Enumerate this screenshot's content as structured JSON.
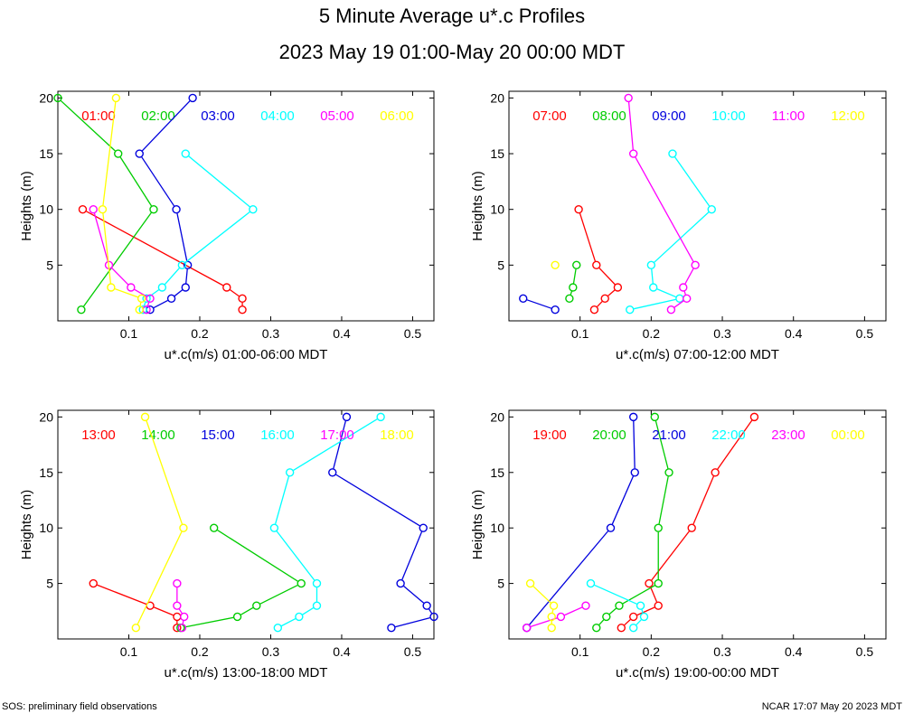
{
  "title": "5 Minute Average u*.c Profiles",
  "subtitle": "2023 May 19 01:00-May 20 00:00 MDT",
  "footer_left": "SOS: preliminary field observations",
  "footer_right": "NCAR 17:07 May 20 2023 MDT",
  "chart_data": [
    {
      "type": "line",
      "xlabel": "u*.c(m/s) 01:00-06:00 MDT",
      "ylabel": "Heights (m)",
      "xlim": [
        0.0,
        0.53
      ],
      "ylim": [
        0.0,
        20.6
      ],
      "xticks": [
        "0.1",
        "0.2",
        "0.3",
        "0.4",
        "0.5"
      ],
      "yticks": [
        "5",
        "10",
        "15",
        "20"
      ],
      "series": [
        {
          "name": "01:00",
          "color": "#ff0000",
          "points": [
            [
              0.035,
              10
            ],
            [
              0.238,
              3
            ],
            [
              0.26,
              2
            ],
            [
              0.26,
              1
            ]
          ]
        },
        {
          "name": "02:00",
          "color": "#00cc00",
          "points": [
            [
              0.0,
              20
            ],
            [
              0.085,
              15
            ],
            [
              0.135,
              10
            ],
            [
              0.033,
              1
            ]
          ]
        },
        {
          "name": "03:00",
          "color": "#0000dd",
          "points": [
            [
              0.19,
              20
            ],
            [
              0.115,
              15
            ],
            [
              0.167,
              10
            ],
            [
              0.183,
              5
            ],
            [
              0.18,
              3
            ],
            [
              0.16,
              2
            ],
            [
              0.13,
              1
            ]
          ]
        },
        {
          "name": "04:00",
          "color": "#00ffff",
          "points": [
            [
              0.18,
              15
            ],
            [
              0.275,
              10
            ],
            [
              0.175,
              5
            ],
            [
              0.147,
              3
            ],
            [
              0.125,
              2
            ],
            [
              0.12,
              1
            ]
          ]
        },
        {
          "name": "05:00",
          "color": "#ff00ff",
          "points": [
            [
              0.05,
              10
            ],
            [
              0.072,
              5
            ],
            [
              0.103,
              3
            ],
            [
              0.13,
              2
            ],
            [
              0.125,
              1
            ]
          ]
        },
        {
          "name": "06:00",
          "color": "#ffff00",
          "points": [
            [
              0.082,
              20
            ],
            [
              0.063,
              10
            ],
            [
              0.075,
              3
            ],
            [
              0.118,
              2
            ],
            [
              0.115,
              1
            ]
          ]
        }
      ]
    },
    {
      "type": "line",
      "xlabel": "u*.c(m/s) 07:00-12:00 MDT",
      "ylabel": "Heights (m)",
      "xlim": [
        0.0,
        0.53
      ],
      "ylim": [
        0.0,
        20.6
      ],
      "xticks": [
        "0.1",
        "0.2",
        "0.3",
        "0.4",
        "0.5"
      ],
      "yticks": [
        "5",
        "10",
        "15",
        "20"
      ],
      "series": [
        {
          "name": "07:00",
          "color": "#ff0000",
          "points": [
            [
              0.098,
              10
            ],
            [
              0.123,
              5
            ],
            [
              0.153,
              3
            ],
            [
              0.135,
              2
            ],
            [
              0.12,
              1
            ]
          ]
        },
        {
          "name": "08:00",
          "color": "#00cc00",
          "points": [
            [
              0.095,
              5
            ],
            [
              0.09,
              3
            ],
            [
              0.085,
              2
            ]
          ]
        },
        {
          "name": "09:00",
          "color": "#0000dd",
          "points": [
            [
              0.02,
              2
            ],
            [
              0.065,
              1
            ]
          ]
        },
        {
          "name": "10:00",
          "color": "#00ffff",
          "points": [
            [
              0.23,
              15
            ],
            [
              0.285,
              10
            ],
            [
              0.2,
              5
            ],
            [
              0.203,
              3
            ],
            [
              0.24,
              2
            ],
            [
              0.17,
              1
            ]
          ]
        },
        {
          "name": "11:00",
          "color": "#ff00ff",
          "points": [
            [
              0.168,
              20
            ],
            [
              0.175,
              15
            ],
            [
              0.262,
              5
            ],
            [
              0.245,
              3
            ],
            [
              0.25,
              2
            ],
            [
              0.228,
              1
            ]
          ]
        },
        {
          "name": "12:00",
          "color": "#ffff00",
          "points": [
            [
              0.065,
              5
            ]
          ]
        }
      ]
    },
    {
      "type": "line",
      "xlabel": "u*.c(m/s) 13:00-18:00 MDT",
      "ylabel": "Heights (m)",
      "xlim": [
        0.0,
        0.53
      ],
      "ylim": [
        0.0,
        20.6
      ],
      "xticks": [
        "0.1",
        "0.2",
        "0.3",
        "0.4",
        "0.5"
      ],
      "yticks": [
        "5",
        "10",
        "15",
        "20"
      ],
      "series": [
        {
          "name": "13:00",
          "color": "#ff0000",
          "points": [
            [
              0.05,
              5
            ],
            [
              0.13,
              3
            ],
            [
              0.168,
              2
            ],
            [
              0.168,
              1
            ]
          ]
        },
        {
          "name": "14:00",
          "color": "#00cc00",
          "points": [
            [
              0.22,
              10
            ],
            [
              0.343,
              5
            ],
            [
              0.28,
              3
            ],
            [
              0.253,
              2
            ],
            [
              0.173,
              1
            ]
          ]
        },
        {
          "name": "15:00",
          "color": "#0000dd",
          "points": [
            [
              0.407,
              20
            ],
            [
              0.387,
              15
            ],
            [
              0.515,
              10
            ],
            [
              0.483,
              5
            ],
            [
              0.52,
              3
            ],
            [
              0.53,
              2
            ],
            [
              0.47,
              1
            ]
          ]
        },
        {
          "name": "16:00",
          "color": "#00ffff",
          "points": [
            [
              0.455,
              20
            ],
            [
              0.327,
              15
            ],
            [
              0.305,
              10
            ],
            [
              0.365,
              5
            ],
            [
              0.365,
              3
            ],
            [
              0.34,
              2
            ],
            [
              0.31,
              1
            ]
          ]
        },
        {
          "name": "17:00",
          "color": "#ff00ff",
          "points": [
            [
              0.168,
              5
            ],
            [
              0.168,
              3
            ],
            [
              0.178,
              2
            ],
            [
              0.175,
              1
            ]
          ]
        },
        {
          "name": "18:00",
          "color": "#ffff00",
          "points": [
            [
              0.123,
              20
            ],
            [
              0.177,
              10
            ],
            [
              0.11,
              1
            ]
          ]
        }
      ]
    },
    {
      "type": "line",
      "xlabel": "u*.c(m/s) 19:00-00:00 MDT",
      "ylabel": "Heights (m)",
      "xlim": [
        0.0,
        0.53
      ],
      "ylim": [
        0.0,
        20.6
      ],
      "xticks": [
        "0.1",
        "0.2",
        "0.3",
        "0.4",
        "0.5"
      ],
      "yticks": [
        "5",
        "10",
        "15",
        "20"
      ],
      "series": [
        {
          "name": "19:00",
          "color": "#ff0000",
          "points": [
            [
              0.345,
              20
            ],
            [
              0.29,
              15
            ],
            [
              0.257,
              10
            ],
            [
              0.197,
              5
            ],
            [
              0.21,
              3
            ],
            [
              0.175,
              2
            ],
            [
              0.158,
              1
            ]
          ]
        },
        {
          "name": "20:00",
          "color": "#00cc00",
          "points": [
            [
              0.205,
              20
            ],
            [
              0.225,
              15
            ],
            [
              0.21,
              10
            ],
            [
              0.21,
              5
            ],
            [
              0.155,
              3
            ],
            [
              0.137,
              2
            ],
            [
              0.123,
              1
            ]
          ]
        },
        {
          "name": "21:00",
          "color": "#0000dd",
          "points": [
            [
              0.175,
              20
            ],
            [
              0.177,
              15
            ],
            [
              0.143,
              10
            ],
            [
              0.025,
              1
            ]
          ]
        },
        {
          "name": "22:00",
          "color": "#00ffff",
          "points": [
            [
              0.115,
              5
            ],
            [
              0.185,
              3
            ],
            [
              0.19,
              2
            ],
            [
              0.175,
              1
            ]
          ]
        },
        {
          "name": "23:00",
          "color": "#ff00ff",
          "points": [
            [
              0.108,
              3
            ],
            [
              0.073,
              2
            ],
            [
              0.025,
              1
            ]
          ]
        },
        {
          "name": "00:00",
          "color": "#ffff00",
          "points": [
            [
              0.03,
              5
            ],
            [
              0.063,
              3
            ],
            [
              0.06,
              2
            ],
            [
              0.06,
              1
            ]
          ]
        }
      ]
    }
  ]
}
